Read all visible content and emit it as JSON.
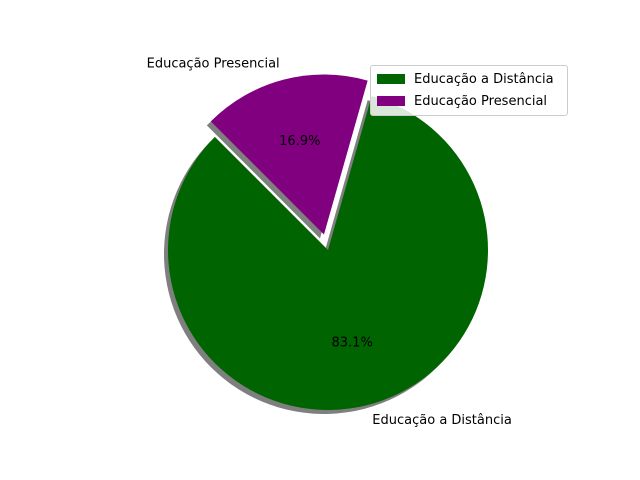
{
  "chart_data": {
    "type": "pie",
    "categories": [
      "Educação a Distância",
      "Educação Presencial"
    ],
    "values": [
      83.1,
      16.9
    ],
    "percent_labels": [
      "83.1%",
      "16.9%"
    ],
    "colors": [
      "#006400",
      "#800080"
    ],
    "exploded": [
      "Educação Presencial"
    ],
    "shadow": true,
    "legend_position": "upper right",
    "title": ""
  }
}
